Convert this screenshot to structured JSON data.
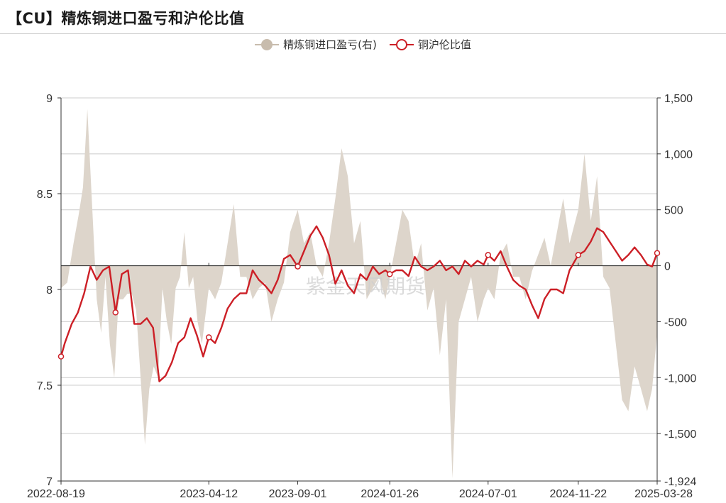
{
  "title": "【CU】精炼铜进口盈亏和沪伦比值",
  "watermark": "紫金天风期货",
  "legend": {
    "area_label": "精炼铜进口盈亏(右)",
    "line_label": "铜沪伦比值"
  },
  "colors": {
    "area": "#ddd5cb",
    "area_legend": "#c8bcad",
    "line": "#cc1f26",
    "grid": "#cccccc",
    "axis": "#333333"
  },
  "chart_data": {
    "type": "line",
    "x_range": [
      "2022-08-19",
      "2025-03-28"
    ],
    "x_ticks": [
      "2022-08-19",
      "2023-04-12",
      "2023-09-01",
      "2024-01-26",
      "2024-07-01",
      "2024-11-22",
      "2025-03-28"
    ],
    "left_axis": {
      "ylim": [
        7,
        9
      ],
      "ticks": [
        "7",
        "7.5",
        "8",
        "8.5",
        "9"
      ],
      "tick_values": [
        7,
        7.5,
        8,
        8.5,
        9
      ]
    },
    "right_axis": {
      "ylim": [
        -1924,
        1500
      ],
      "ticks": [
        "-1,924",
        "-1,500",
        "-1,000",
        "-500",
        "0",
        "500",
        "1,000",
        "1,500"
      ],
      "tick_values": [
        -1924,
        -1500,
        -1000,
        -500,
        0,
        500,
        1000,
        1500
      ]
    },
    "grid": true,
    "legend_position": "top-center",
    "series": [
      {
        "name": "精炼铜进口盈亏(右)",
        "axis": "right",
        "style": "area",
        "x": [
          "2022-08-19",
          "2022-08-29",
          "2022-09-08",
          "2022-09-16",
          "2022-09-23",
          "2022-09-30",
          "2022-10-08",
          "2022-10-15",
          "2022-10-22",
          "2022-10-29",
          "2022-11-05",
          "2022-11-12",
          "2022-11-19",
          "2022-11-26",
          "2022-12-03",
          "2022-12-10",
          "2022-12-17",
          "2022-12-24",
          "2022-12-31",
          "2023-01-07",
          "2023-01-14",
          "2023-01-21",
          "2023-01-28",
          "2023-02-04",
          "2023-02-11",
          "2023-02-18",
          "2023-02-25",
          "2023-03-04",
          "2023-03-11",
          "2023-03-18",
          "2023-03-25",
          "2023-04-01",
          "2023-04-12",
          "2023-04-22",
          "2023-05-02",
          "2023-05-12",
          "2023-05-22",
          "2023-06-01",
          "2023-06-11",
          "2023-06-21",
          "2023-07-01",
          "2023-07-11",
          "2023-07-21",
          "2023-07-31",
          "2023-08-10",
          "2023-08-20",
          "2023-09-01",
          "2023-09-11",
          "2023-09-21",
          "2023-10-01",
          "2023-10-11",
          "2023-10-21",
          "2023-10-31",
          "2023-11-10",
          "2023-11-20",
          "2023-11-30",
          "2023-12-10",
          "2023-12-20",
          "2023-12-30",
          "2024-01-09",
          "2024-01-19",
          "2024-01-26",
          "2024-02-05",
          "2024-02-15",
          "2024-02-25",
          "2024-03-06",
          "2024-03-16",
          "2024-03-26",
          "2024-04-05",
          "2024-04-15",
          "2024-04-25",
          "2024-05-05",
          "2024-05-15",
          "2024-05-25",
          "2024-06-04",
          "2024-06-14",
          "2024-06-24",
          "2024-07-01",
          "2024-07-11",
          "2024-07-21",
          "2024-07-31",
          "2024-08-10",
          "2024-08-20",
          "2024-08-30",
          "2024-09-09",
          "2024-09-19",
          "2024-09-29",
          "2024-10-09",
          "2024-10-19",
          "2024-10-29",
          "2024-11-08",
          "2024-11-22",
          "2024-12-02",
          "2024-12-12",
          "2024-12-22",
          "2025-01-01",
          "2025-01-11",
          "2025-01-21",
          "2025-01-31",
          "2025-02-10",
          "2025-02-20",
          "2025-03-02",
          "2025-03-12",
          "2025-03-20",
          "2025-03-28"
        ],
        "values": [
          -200,
          -150,
          200,
          450,
          700,
          1400,
          500,
          -300,
          -600,
          -100,
          -700,
          -1000,
          -300,
          -300,
          -250,
          -250,
          -400,
          -1000,
          -1600,
          -1100,
          -900,
          -1000,
          -200,
          -500,
          -700,
          -200,
          -100,
          300,
          -200,
          -100,
          -500,
          -700,
          -200,
          -300,
          -150,
          200,
          550,
          -100,
          -100,
          -300,
          -200,
          -150,
          -500,
          -300,
          -150,
          300,
          500,
          200,
          300,
          0,
          -100,
          200,
          600,
          1050,
          800,
          200,
          400,
          -300,
          -200,
          -100,
          -300,
          -100,
          200,
          500,
          400,
          0,
          200,
          -400,
          -200,
          -800,
          -300,
          -1900,
          -500,
          -300,
          -100,
          -500,
          -300,
          -200,
          -300,
          100,
          200,
          -100,
          -100,
          -300,
          -50,
          100,
          250,
          0,
          300,
          600,
          200,
          500,
          1000,
          400,
          800,
          -100,
          -200,
          -700,
          -1200,
          -1300,
          -900,
          -1100,
          -1300,
          -1100,
          -600
        ]
      },
      {
        "name": "铜沪伦比值",
        "axis": "left",
        "style": "line",
        "x": [
          "2022-08-19",
          "2022-08-25",
          "2022-09-05",
          "2022-09-15",
          "2022-09-25",
          "2022-10-05",
          "2022-10-15",
          "2022-10-25",
          "2022-11-04",
          "2022-11-14",
          "2022-11-24",
          "2022-12-04",
          "2022-12-14",
          "2022-12-24",
          "2023-01-03",
          "2023-01-13",
          "2023-01-23",
          "2023-02-02",
          "2023-02-12",
          "2023-02-22",
          "2023-03-04",
          "2023-03-14",
          "2023-03-24",
          "2023-04-03",
          "2023-04-12",
          "2023-04-22",
          "2023-05-02",
          "2023-05-12",
          "2023-05-22",
          "2023-06-01",
          "2023-06-11",
          "2023-06-21",
          "2023-07-01",
          "2023-07-11",
          "2023-07-21",
          "2023-07-31",
          "2023-08-10",
          "2023-08-20",
          "2023-09-01",
          "2023-09-11",
          "2023-09-21",
          "2023-10-01",
          "2023-10-11",
          "2023-10-21",
          "2023-10-31",
          "2023-11-10",
          "2023-11-20",
          "2023-11-30",
          "2023-12-10",
          "2023-12-20",
          "2023-12-30",
          "2024-01-09",
          "2024-01-19",
          "2024-01-26",
          "2024-02-05",
          "2024-02-15",
          "2024-02-25",
          "2024-03-06",
          "2024-03-16",
          "2024-03-26",
          "2024-04-05",
          "2024-04-15",
          "2024-04-25",
          "2024-05-05",
          "2024-05-15",
          "2024-05-25",
          "2024-06-04",
          "2024-06-14",
          "2024-06-24",
          "2024-07-01",
          "2024-07-11",
          "2024-07-21",
          "2024-07-31",
          "2024-08-10",
          "2024-08-20",
          "2024-08-30",
          "2024-09-09",
          "2024-09-19",
          "2024-09-29",
          "2024-10-09",
          "2024-10-19",
          "2024-10-29",
          "2024-11-08",
          "2024-11-22",
          "2024-12-02",
          "2024-12-12",
          "2024-12-22",
          "2025-01-01",
          "2025-01-11",
          "2025-01-21",
          "2025-01-31",
          "2025-02-10",
          "2025-02-20",
          "2025-03-02",
          "2025-03-12",
          "2025-03-20",
          "2025-03-28"
        ],
        "values": [
          7.65,
          7.72,
          7.82,
          7.88,
          7.98,
          8.12,
          8.05,
          8.1,
          8.12,
          7.88,
          8.08,
          8.1,
          7.82,
          7.82,
          7.85,
          7.8,
          7.52,
          7.55,
          7.62,
          7.72,
          7.75,
          7.85,
          7.76,
          7.65,
          7.75,
          7.72,
          7.8,
          7.9,
          7.95,
          7.98,
          7.98,
          8.1,
          8.05,
          8.02,
          7.98,
          8.05,
          8.16,
          8.18,
          8.12,
          8.2,
          8.28,
          8.33,
          8.27,
          8.18,
          8.03,
          8.1,
          8.02,
          7.98,
          8.08,
          8.05,
          8.12,
          8.08,
          8.1,
          8.08,
          8.1,
          8.1,
          8.07,
          8.17,
          8.12,
          8.1,
          8.12,
          8.15,
          8.1,
          8.12,
          8.08,
          8.15,
          8.12,
          8.15,
          8.13,
          8.18,
          8.15,
          8.2,
          8.12,
          8.05,
          8.02,
          8.0,
          7.92,
          7.85,
          7.95,
          8.0,
          8.0,
          7.98,
          8.1,
          8.18,
          8.2,
          8.25,
          8.32,
          8.3,
          8.25,
          8.2,
          8.15,
          8.18,
          8.22,
          8.18,
          8.13,
          8.12,
          8.19
        ]
      }
    ],
    "line_markers": [
      "2022-08-19",
      "2022-11-14",
      "2023-04-12",
      "2023-09-01",
      "2024-01-26",
      "2024-07-01",
      "2024-11-22",
      "2025-03-28"
    ]
  }
}
